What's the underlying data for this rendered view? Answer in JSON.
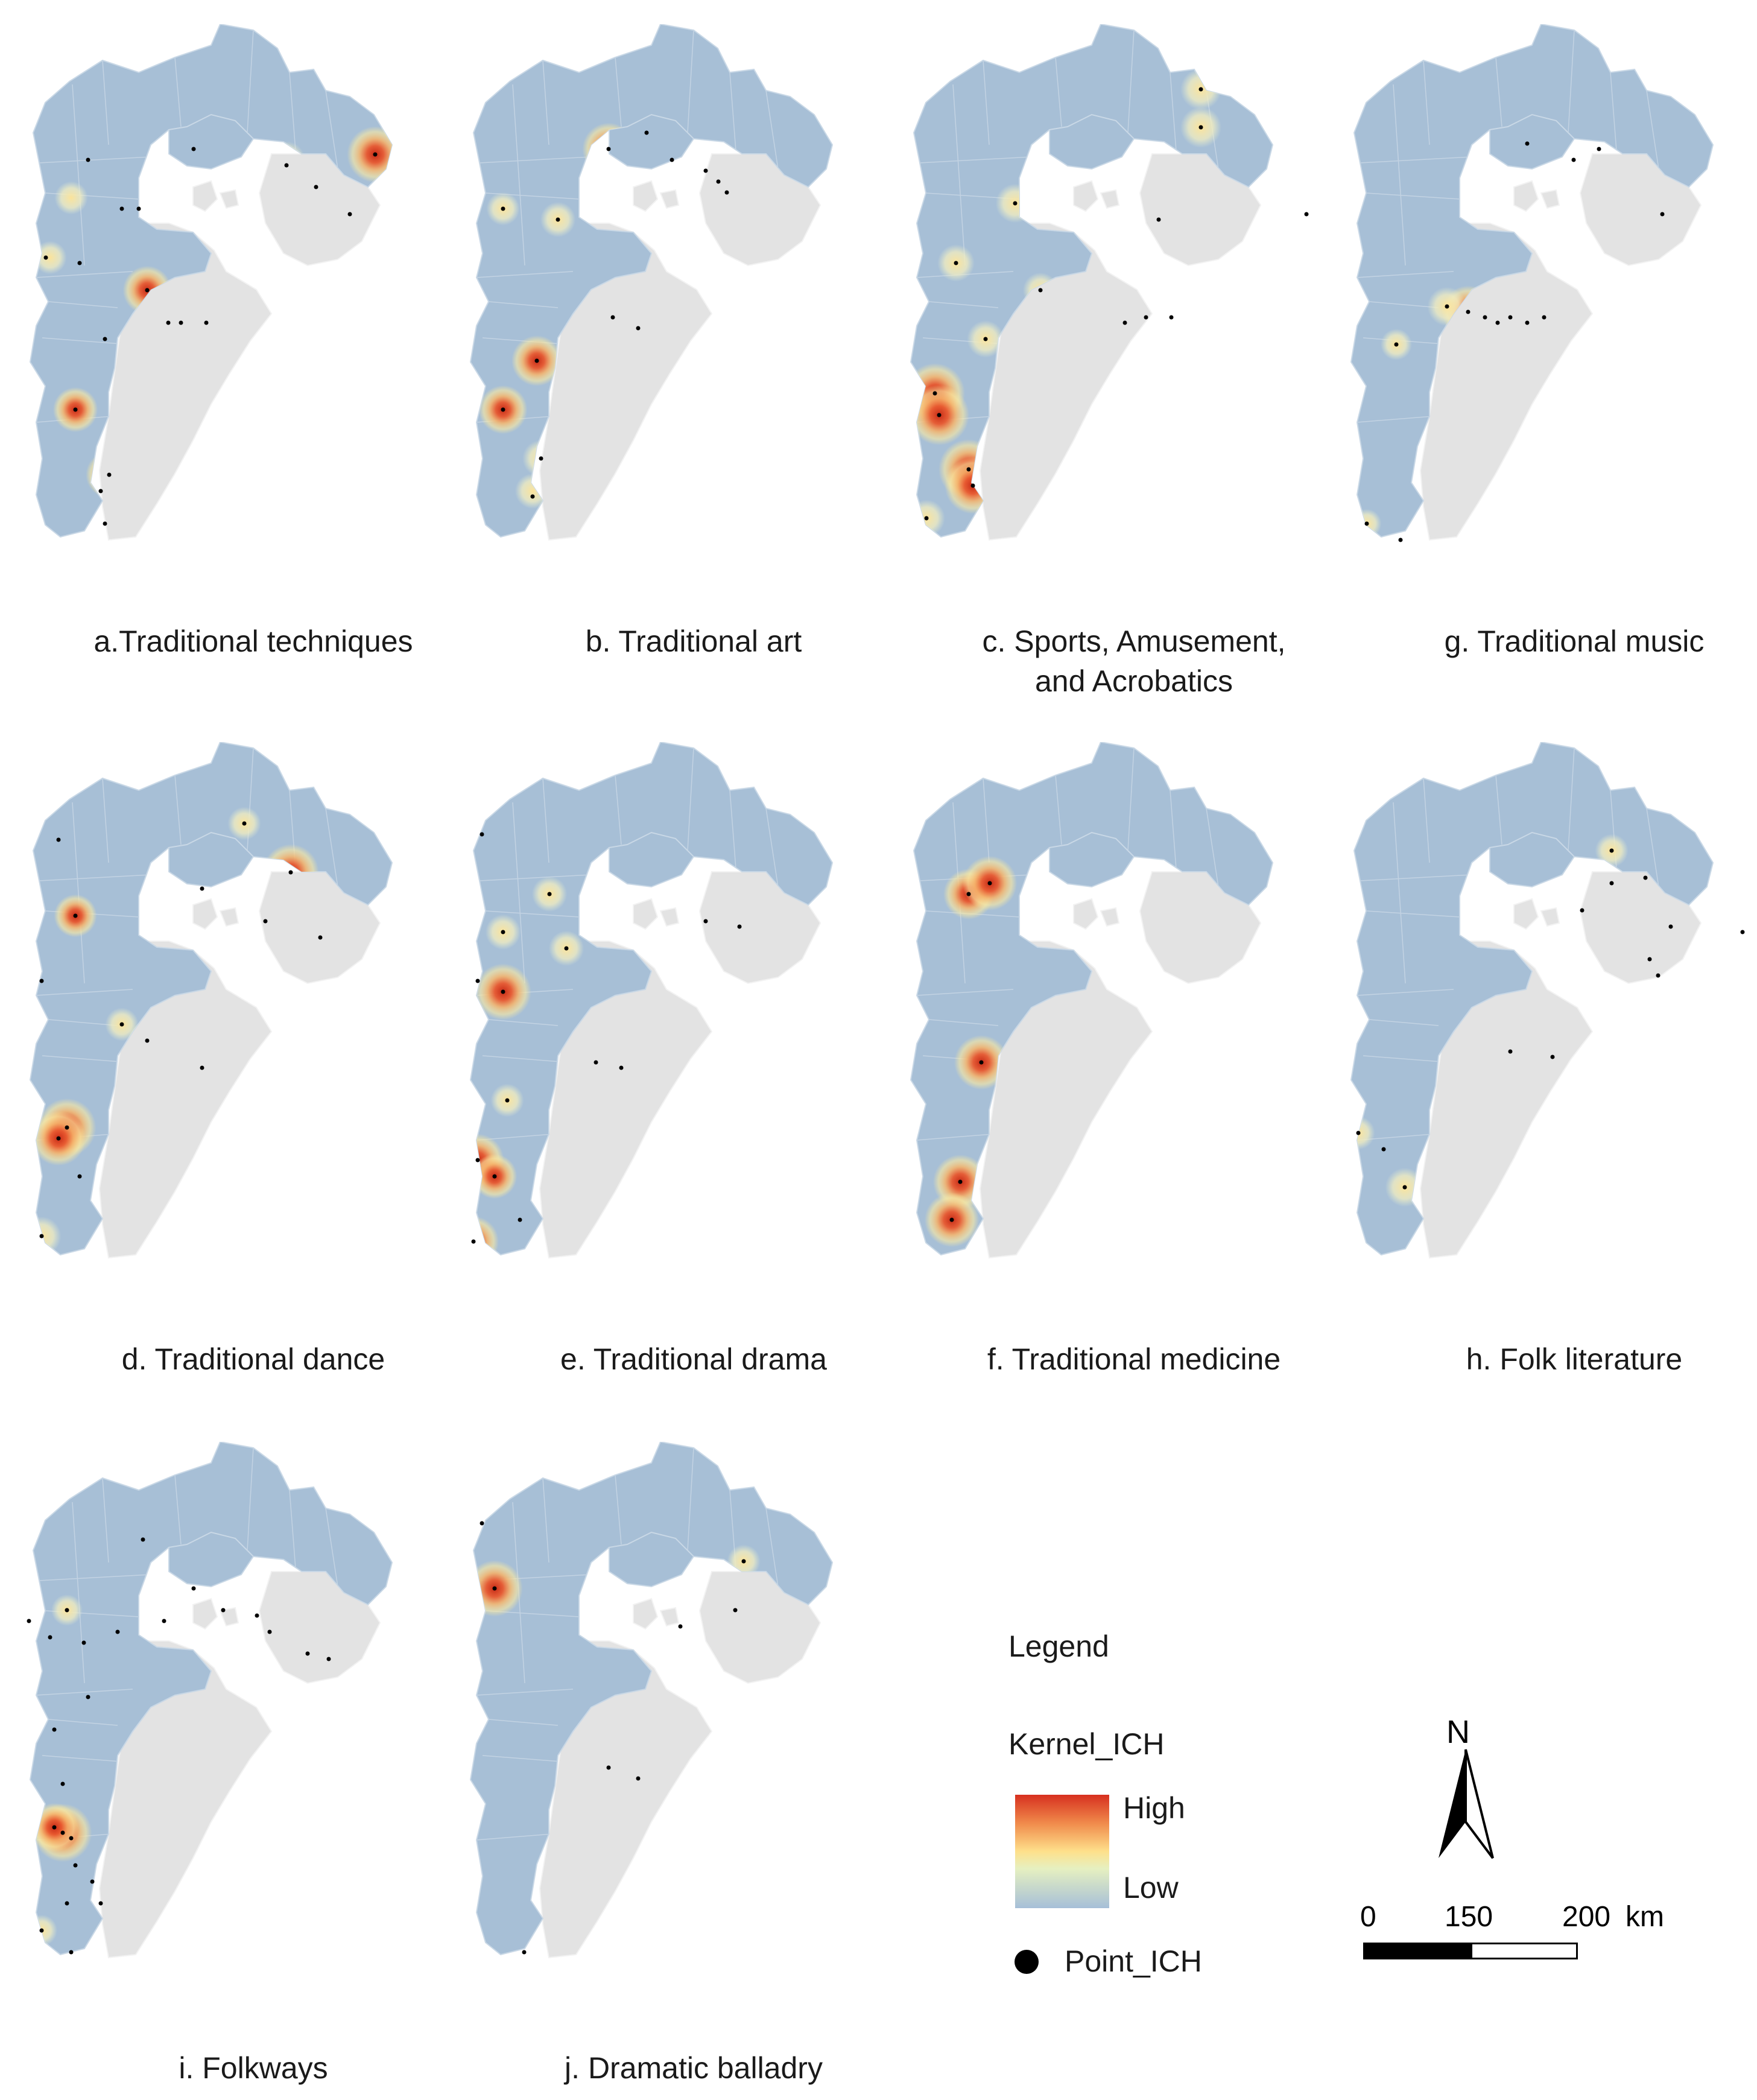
{
  "panels": [
    {
      "id": "a",
      "caption": "a.Traditional techniques",
      "hotspots": [
        [
          0.86,
          0.24,
          0.9
        ],
        [
          0.65,
          0.25,
          0.4
        ],
        [
          0.32,
          0.49,
          0.7
        ],
        [
          0.38,
          0.55,
          0.8
        ],
        [
          0.46,
          0.55,
          0.55
        ],
        [
          0.15,
          0.71,
          0.6
        ],
        [
          0.23,
          0.83,
          0.65
        ],
        [
          0.72,
          0.29,
          0.35
        ],
        [
          0.81,
          0.35,
          0.4
        ],
        [
          0.09,
          0.43,
          0.3
        ],
        [
          0.14,
          0.32,
          0.3
        ]
      ],
      "points": [
        [
          0.86,
          0.24
        ],
        [
          0.65,
          0.26
        ],
        [
          0.43,
          0.23
        ],
        [
          0.18,
          0.25
        ],
        [
          0.32,
          0.49
        ],
        [
          0.37,
          0.55
        ],
        [
          0.4,
          0.55
        ],
        [
          0.46,
          0.55
        ],
        [
          0.15,
          0.71
        ],
        [
          0.23,
          0.83
        ],
        [
          0.21,
          0.86
        ],
        [
          0.72,
          0.3
        ],
        [
          0.8,
          0.35
        ],
        [
          0.08,
          0.43
        ],
        [
          0.16,
          0.44
        ],
        [
          0.22,
          0.58
        ],
        [
          0.26,
          0.34
        ],
        [
          0.3,
          0.34
        ],
        [
          0.22,
          0.92
        ]
      ]
    },
    {
      "id": "b",
      "caption": "b. Traditional art",
      "hotspots": [
        [
          0.37,
          0.23,
          0.8
        ],
        [
          0.6,
          0.27,
          0.9
        ],
        [
          0.64,
          0.29,
          0.75
        ],
        [
          0.61,
          0.31,
          0.6
        ],
        [
          0.2,
          0.62,
          0.75
        ],
        [
          0.12,
          0.71,
          0.7
        ],
        [
          0.44,
          0.56,
          0.65
        ],
        [
          0.52,
          0.25,
          0.35
        ],
        [
          0.21,
          0.8,
          0.4
        ],
        [
          0.19,
          0.86,
          0.35
        ],
        [
          0.12,
          0.34,
          0.3
        ],
        [
          0.25,
          0.36,
          0.35
        ],
        [
          0.38,
          0.54,
          0.3
        ]
      ],
      "points": [
        [
          0.37,
          0.23
        ],
        [
          0.6,
          0.27
        ],
        [
          0.63,
          0.29
        ],
        [
          0.65,
          0.31
        ],
        [
          0.52,
          0.25
        ],
        [
          0.46,
          0.2
        ],
        [
          0.2,
          0.62
        ],
        [
          0.12,
          0.71
        ],
        [
          0.44,
          0.56
        ],
        [
          0.38,
          0.54
        ],
        [
          0.21,
          0.8
        ],
        [
          0.19,
          0.87
        ],
        [
          0.12,
          0.34
        ],
        [
          0.25,
          0.36
        ]
      ]
    },
    {
      "id": "c",
      "caption": "c. Sports, Amusement,\nand Acrobatics",
      "hotspots": [
        [
          0.6,
          0.54,
          1.0
        ],
        [
          0.66,
          0.54,
          1.0
        ],
        [
          0.55,
          0.55,
          0.9
        ],
        [
          0.1,
          0.68,
          1.0
        ],
        [
          0.11,
          0.72,
          1.0
        ],
        [
          0.18,
          0.82,
          1.0
        ],
        [
          0.19,
          0.85,
          0.9
        ],
        [
          0.73,
          0.12,
          0.5
        ],
        [
          0.73,
          0.19,
          0.5
        ],
        [
          0.29,
          0.33,
          0.45
        ],
        [
          0.63,
          0.36,
          0.45
        ],
        [
          0.15,
          0.44,
          0.4
        ],
        [
          0.22,
          0.58,
          0.4
        ],
        [
          0.35,
          0.49,
          0.35
        ],
        [
          0.08,
          0.91,
          0.4
        ]
      ],
      "points": [
        [
          0.6,
          0.54
        ],
        [
          0.66,
          0.54
        ],
        [
          0.55,
          0.55
        ],
        [
          0.1,
          0.68
        ],
        [
          0.11,
          0.72
        ],
        [
          0.18,
          0.82
        ],
        [
          0.19,
          0.85
        ],
        [
          0.73,
          0.12
        ],
        [
          0.73,
          0.19
        ],
        [
          0.29,
          0.33
        ],
        [
          0.63,
          0.36
        ],
        [
          0.15,
          0.44
        ],
        [
          0.22,
          0.58
        ],
        [
          0.35,
          0.49
        ],
        [
          0.08,
          0.91
        ],
        [
          0.98,
          0.35
        ]
      ]
    },
    {
      "id": "g",
      "caption": "g. Traditional music",
      "hotspots": [
        [
          0.32,
          0.53,
          0.8
        ],
        [
          0.38,
          0.54,
          0.9
        ],
        [
          0.45,
          0.55,
          0.75
        ],
        [
          0.5,
          0.54,
          0.6
        ],
        [
          0.27,
          0.52,
          0.45
        ],
        [
          0.46,
          0.22,
          0.25
        ],
        [
          0.78,
          0.35,
          0.25
        ],
        [
          0.15,
          0.59,
          0.25
        ],
        [
          0.08,
          0.92,
          0.2
        ]
      ],
      "points": [
        [
          0.32,
          0.53
        ],
        [
          0.36,
          0.54
        ],
        [
          0.39,
          0.55
        ],
        [
          0.42,
          0.54
        ],
        [
          0.46,
          0.55
        ],
        [
          0.5,
          0.54
        ],
        [
          0.27,
          0.52
        ],
        [
          0.46,
          0.22
        ],
        [
          0.57,
          0.25
        ],
        [
          0.63,
          0.23
        ],
        [
          0.78,
          0.35
        ],
        [
          0.15,
          0.59
        ],
        [
          0.08,
          0.92
        ],
        [
          0.16,
          0.95
        ]
      ]
    },
    {
      "id": "d",
      "caption": "d. Traditional dance",
      "hotspots": [
        [
          0.66,
          0.24,
          0.9
        ],
        [
          0.15,
          0.32,
          0.55
        ],
        [
          0.13,
          0.71,
          0.95
        ],
        [
          0.11,
          0.73,
          0.85
        ],
        [
          0.45,
          0.27,
          0.45
        ],
        [
          0.6,
          0.33,
          0.4
        ],
        [
          0.73,
          0.36,
          0.4
        ],
        [
          0.32,
          0.55,
          0.45
        ],
        [
          0.45,
          0.6,
          0.4
        ],
        [
          0.07,
          0.91,
          0.45
        ],
        [
          0.55,
          0.15,
          0.3
        ],
        [
          0.26,
          0.52,
          0.3
        ]
      ],
      "points": [
        [
          0.66,
          0.24
        ],
        [
          0.15,
          0.32
        ],
        [
          0.13,
          0.71
        ],
        [
          0.11,
          0.73
        ],
        [
          0.45,
          0.27
        ],
        [
          0.6,
          0.33
        ],
        [
          0.73,
          0.36
        ],
        [
          0.32,
          0.55
        ],
        [
          0.45,
          0.6
        ],
        [
          0.07,
          0.91
        ],
        [
          0.55,
          0.15
        ],
        [
          0.26,
          0.52
        ],
        [
          0.11,
          0.18
        ],
        [
          0.07,
          0.44
        ],
        [
          0.16,
          0.8
        ]
      ]
    },
    {
      "id": "e",
      "caption": "e. Traditional drama",
      "hotspots": [
        [
          0.12,
          0.46,
          0.9
        ],
        [
          0.06,
          0.77,
          0.8
        ],
        [
          0.1,
          0.8,
          0.6
        ],
        [
          0.05,
          0.92,
          0.75
        ],
        [
          0.23,
          0.28,
          0.35
        ],
        [
          0.12,
          0.35,
          0.35
        ],
        [
          0.27,
          0.38,
          0.35
        ],
        [
          0.6,
          0.33,
          0.4
        ],
        [
          0.68,
          0.34,
          0.35
        ],
        [
          0.34,
          0.59,
          0.3
        ],
        [
          0.4,
          0.6,
          0.3
        ],
        [
          0.13,
          0.66,
          0.3
        ]
      ],
      "points": [
        [
          0.12,
          0.46
        ],
        [
          0.06,
          0.77
        ],
        [
          0.1,
          0.8
        ],
        [
          0.05,
          0.92
        ],
        [
          0.23,
          0.28
        ],
        [
          0.12,
          0.35
        ],
        [
          0.27,
          0.38
        ],
        [
          0.6,
          0.33
        ],
        [
          0.68,
          0.34
        ],
        [
          0.34,
          0.59
        ],
        [
          0.4,
          0.6
        ],
        [
          0.13,
          0.66
        ],
        [
          0.07,
          0.17
        ],
        [
          0.06,
          0.44
        ],
        [
          0.16,
          0.88
        ]
      ]
    },
    {
      "id": "f",
      "caption": "f. Traditional medicine",
      "hotspots": [
        [
          0.18,
          0.28,
          0.75
        ],
        [
          0.23,
          0.26,
          0.85
        ],
        [
          0.21,
          0.59,
          0.85
        ],
        [
          0.16,
          0.81,
          0.85
        ],
        [
          0.14,
          0.88,
          0.85
        ]
      ],
      "points": [
        [
          0.18,
          0.28
        ],
        [
          0.23,
          0.26
        ],
        [
          0.21,
          0.59
        ],
        [
          0.16,
          0.81
        ],
        [
          0.14,
          0.88
        ]
      ]
    },
    {
      "id": "h",
      "caption": "h. Folk literature",
      "hotspots": [
        [
          0.59,
          0.31,
          0.8
        ],
        [
          0.75,
          0.4,
          0.9
        ],
        [
          0.77,
          0.43,
          0.75
        ],
        [
          0.66,
          0.2,
          0.3
        ],
        [
          0.66,
          0.26,
          0.3
        ],
        [
          0.8,
          0.34,
          0.3
        ],
        [
          0.97,
          0.35,
          0.3
        ],
        [
          0.17,
          0.82,
          0.45
        ],
        [
          0.06,
          0.72,
          0.3
        ],
        [
          0.42,
          0.57,
          0.25
        ],
        [
          0.52,
          0.58,
          0.25
        ]
      ],
      "points": [
        [
          0.59,
          0.31
        ],
        [
          0.75,
          0.4
        ],
        [
          0.77,
          0.43
        ],
        [
          0.66,
          0.2
        ],
        [
          0.66,
          0.26
        ],
        [
          0.8,
          0.34
        ],
        [
          0.97,
          0.35
        ],
        [
          0.17,
          0.82
        ],
        [
          0.06,
          0.72
        ],
        [
          0.42,
          0.57
        ],
        [
          0.52,
          0.58
        ],
        [
          0.74,
          0.25
        ],
        [
          0.12,
          0.75
        ]
      ]
    },
    {
      "id": "i",
      "caption": "i. Folkways",
      "hotspots": [
        [
          0.12,
          0.72,
          0.95
        ],
        [
          0.1,
          0.71,
          0.7
        ],
        [
          0.13,
          0.31,
          0.25
        ],
        [
          0.58,
          0.32,
          0.25
        ],
        [
          0.07,
          0.9,
          0.25
        ]
      ],
      "points": [
        [
          0.12,
          0.72
        ],
        [
          0.1,
          0.71
        ],
        [
          0.14,
          0.73
        ],
        [
          0.09,
          0.36
        ],
        [
          0.04,
          0.33
        ],
        [
          0.13,
          0.31
        ],
        [
          0.17,
          0.37
        ],
        [
          0.25,
          0.35
        ],
        [
          0.36,
          0.33
        ],
        [
          0.5,
          0.31
        ],
        [
          0.58,
          0.32
        ],
        [
          0.61,
          0.35
        ],
        [
          0.7,
          0.39
        ],
        [
          0.75,
          0.4
        ],
        [
          0.18,
          0.47
        ],
        [
          0.1,
          0.53
        ],
        [
          0.12,
          0.63
        ],
        [
          0.15,
          0.78
        ],
        [
          0.19,
          0.81
        ],
        [
          0.21,
          0.85
        ],
        [
          0.13,
          0.85
        ],
        [
          0.07,
          0.9
        ],
        [
          0.14,
          0.94
        ],
        [
          0.31,
          0.18
        ],
        [
          0.43,
          0.27
        ]
      ]
    },
    {
      "id": "j",
      "caption": "j. Dramatic balladry",
      "hotspots": [
        [
          0.1,
          0.27,
          0.9
        ],
        [
          0.69,
          0.22,
          0.3
        ],
        [
          0.67,
          0.31,
          0.3
        ],
        [
          0.54,
          0.34,
          0.3
        ],
        [
          0.37,
          0.6,
          0.25
        ],
        [
          0.44,
          0.62,
          0.25
        ]
      ],
      "points": [
        [
          0.1,
          0.27
        ],
        [
          0.69,
          0.22
        ],
        [
          0.67,
          0.31
        ],
        [
          0.54,
          0.34
        ],
        [
          0.37,
          0.6
        ],
        [
          0.44,
          0.62
        ],
        [
          0.07,
          0.15
        ],
        [
          0.17,
          0.94
        ]
      ]
    }
  ],
  "legend": {
    "title": "Legend",
    "kernel_title": "Kernel_ICH",
    "high": "High",
    "low": "Low",
    "point_label": "Point_ICH",
    "colors": {
      "high": "#d7301f",
      "mid": "#fee08b",
      "low": "#a6bfd8",
      "region": "#e3e3e3",
      "study": "#a7bfd6"
    }
  },
  "north": {
    "label": "N"
  },
  "scale": {
    "ticks": [
      "0",
      "150",
      "200"
    ],
    "unit": "km"
  }
}
